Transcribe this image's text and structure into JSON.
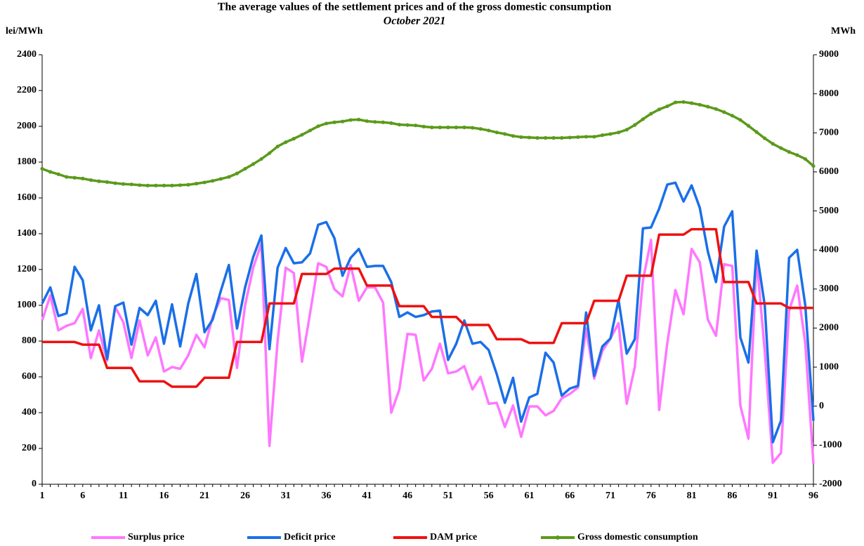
{
  "chart_data": {
    "type": "line",
    "title": "The average values of the settlement prices and of the gross domestic consumption",
    "subtitle": "October 2021",
    "y_label": "lei/MWh",
    "y2_label": "MWh",
    "x": [
      1,
      2,
      3,
      4,
      5,
      6,
      7,
      8,
      9,
      10,
      11,
      12,
      13,
      14,
      15,
      16,
      17,
      18,
      19,
      20,
      21,
      22,
      23,
      24,
      25,
      26,
      27,
      28,
      29,
      30,
      31,
      32,
      33,
      34,
      35,
      36,
      37,
      38,
      39,
      40,
      41,
      42,
      43,
      44,
      45,
      46,
      47,
      48,
      49,
      50,
      51,
      52,
      53,
      54,
      55,
      56,
      57,
      58,
      59,
      60,
      61,
      62,
      63,
      64,
      65,
      66,
      67,
      68,
      69,
      70,
      71,
      72,
      73,
      74,
      75,
      76,
      77,
      78,
      79,
      80,
      81,
      82,
      83,
      84,
      85,
      86,
      87,
      88,
      89,
      90,
      91,
      92,
      93,
      94,
      95,
      96
    ],
    "xlim": [
      1,
      96
    ],
    "xticks": [
      1,
      6,
      11,
      16,
      21,
      26,
      31,
      36,
      41,
      46,
      51,
      56,
      61,
      66,
      71,
      76,
      81,
      86,
      91,
      96
    ],
    "ylim": [
      0,
      2400
    ],
    "yticks": [
      0,
      200,
      400,
      600,
      800,
      1000,
      1200,
      1400,
      1600,
      1800,
      2000,
      2200,
      2400
    ],
    "y2lim": [
      -2000,
      9000
    ],
    "y2ticks": [
      -2000,
      -1000,
      0,
      1000,
      2000,
      3000,
      4000,
      5000,
      6000,
      7000,
      8000,
      9000
    ],
    "grid": false,
    "legend": "bottom",
    "series": [
      {
        "name": "Surplus price",
        "color": "#ff77ff",
        "values": [
          915,
          1055,
          860,
          885,
          900,
          980,
          705,
          860,
          690,
          990,
          905,
          705,
          915,
          720,
          820,
          630,
          655,
          645,
          720,
          835,
          765,
          935,
          1040,
          1030,
          650,
          1000,
          1210,
          1345,
          215,
          800,
          1210,
          1180,
          685,
          955,
          1235,
          1215,
          1090,
          1050,
          1225,
          1025,
          1100,
          1100,
          1015,
          400,
          530,
          840,
          835,
          580,
          645,
          785,
          620,
          630,
          660,
          530,
          600,
          450,
          455,
          320,
          440,
          265,
          435,
          435,
          385,
          410,
          480,
          505,
          540,
          870,
          590,
          745,
          815,
          900,
          450,
          655,
          1140,
          1365,
          415,
          790,
          1085,
          950,
          1315,
          1240,
          920,
          830,
          1230,
          1220,
          440,
          255,
          1260,
          745,
          120,
          175,
          970,
          1110,
          790,
          115
        ]
      },
      {
        "name": "Deficit price",
        "color": "#1a6fe8",
        "values": [
          1010,
          1100,
          940,
          955,
          1215,
          1140,
          860,
          1000,
          700,
          995,
          1015,
          780,
          985,
          945,
          1025,
          785,
          1005,
          770,
          1010,
          1175,
          850,
          920,
          1080,
          1225,
          870,
          1100,
          1270,
          1390,
          755,
          1210,
          1320,
          1235,
          1240,
          1290,
          1450,
          1465,
          1375,
          1165,
          1265,
          1315,
          1215,
          1220,
          1220,
          1130,
          935,
          960,
          935,
          945,
          965,
          970,
          695,
          785,
          915,
          785,
          795,
          750,
          615,
          455,
          595,
          350,
          485,
          505,
          735,
          680,
          495,
          535,
          550,
          960,
          605,
          770,
          815,
          1030,
          730,
          810,
          1430,
          1435,
          1540,
          1675,
          1685,
          1580,
          1670,
          1545,
          1300,
          1130,
          1440,
          1525,
          820,
          680,
          1305,
          1000,
          235,
          355,
          1265,
          1310,
          1000,
          355
        ]
      },
      {
        "name": "DAM price",
        "color": "#ee1111",
        "values": [
          795,
          795,
          795,
          795,
          795,
          780,
          780,
          780,
          650,
          650,
          650,
          650,
          575,
          575,
          575,
          575,
          545,
          545,
          545,
          545,
          595,
          595,
          595,
          595,
          795,
          795,
          795,
          795,
          1010,
          1010,
          1010,
          1010,
          1175,
          1175,
          1175,
          1175,
          1205,
          1205,
          1205,
          1205,
          1110,
          1110,
          1110,
          1110,
          995,
          995,
          995,
          995,
          935,
          935,
          935,
          935,
          890,
          890,
          890,
          890,
          810,
          810,
          810,
          810,
          790,
          790,
          790,
          790,
          900,
          900,
          900,
          900,
          1025,
          1025,
          1025,
          1025,
          1165,
          1165,
          1165,
          1165,
          1395,
          1395,
          1395,
          1395,
          1425,
          1425,
          1425,
          1425,
          1130,
          1130,
          1130,
          1130,
          1010,
          1010,
          1010,
          1010,
          985,
          985,
          985,
          985
        ]
      },
      {
        "name": "Gross domestic consumption",
        "color": "#5a9a1a",
        "axis": "y2",
        "marker": "circle",
        "values": [
          6080,
          6000,
          5940,
          5870,
          5850,
          5830,
          5790,
          5760,
          5740,
          5710,
          5690,
          5680,
          5660,
          5650,
          5650,
          5650,
          5650,
          5660,
          5670,
          5700,
          5730,
          5770,
          5820,
          5870,
          5960,
          6080,
          6200,
          6330,
          6480,
          6650,
          6760,
          6850,
          6950,
          7060,
          7170,
          7240,
          7270,
          7290,
          7330,
          7340,
          7300,
          7280,
          7270,
          7250,
          7210,
          7200,
          7190,
          7160,
          7140,
          7140,
          7140,
          7140,
          7140,
          7130,
          7100,
          7060,
          7010,
          6970,
          6920,
          6890,
          6880,
          6870,
          6870,
          6870,
          6870,
          6880,
          6890,
          6900,
          6900,
          6940,
          6970,
          7010,
          7080,
          7200,
          7350,
          7490,
          7600,
          7680,
          7780,
          7790,
          7760,
          7720,
          7670,
          7610,
          7530,
          7440,
          7330,
          7180,
          7020,
          6860,
          6720,
          6610,
          6510,
          6430,
          6330,
          6150
        ]
      }
    ]
  }
}
